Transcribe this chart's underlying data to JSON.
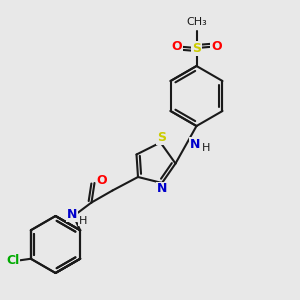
{
  "background_color": "#e8e8e8",
  "bond_color": "#1a1a1a",
  "bond_width": 1.5,
  "S_color": "#cccc00",
  "O_color": "#ff0000",
  "N_color": "#0000cc",
  "Cl_color": "#00aa00",
  "figsize": [
    3.0,
    3.0
  ],
  "dpi": 100,
  "xlim": [
    0,
    10
  ],
  "ylim": [
    0,
    10
  ]
}
